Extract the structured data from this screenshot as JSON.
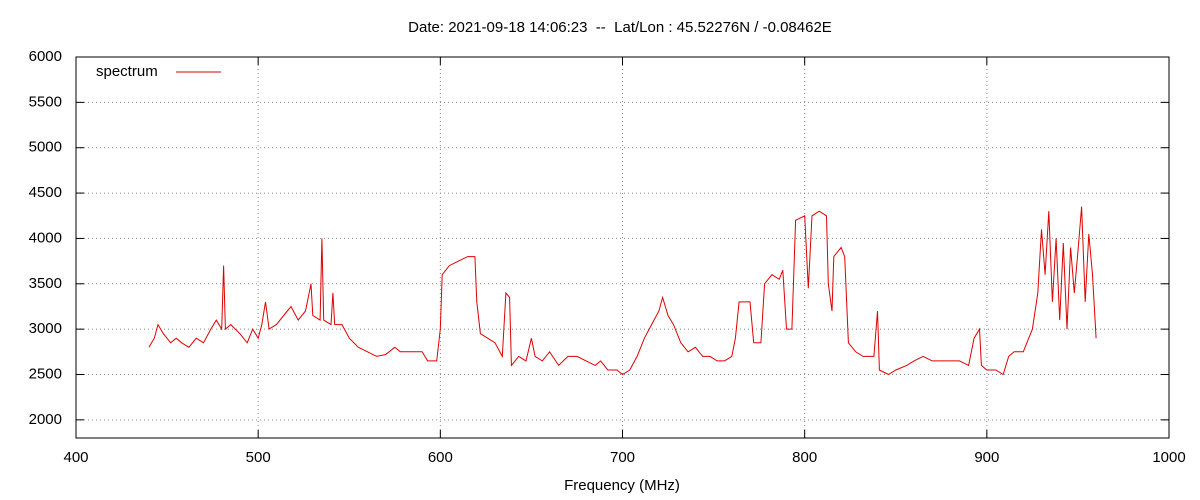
{
  "chart_data": {
    "type": "line",
    "title": "Date: 2021-09-18 14:06:23  --  Lat/Lon : 45.52276N / -0.08462E",
    "xlabel": "Frequency (MHz)",
    "xlim": [
      400,
      1000
    ],
    "xticks": [
      400,
      500,
      600,
      700,
      800,
      900,
      1000
    ],
    "ylim": [
      1800,
      6000
    ],
    "yticks": [
      2000,
      2500,
      3000,
      3500,
      4000,
      4500,
      5000,
      5500,
      6000
    ],
    "grid": true,
    "legend": "top-left",
    "x": [
      440,
      443,
      445,
      448,
      452,
      455,
      458,
      462,
      466,
      470,
      474,
      477,
      480,
      481,
      482,
      485,
      490,
      494,
      497,
      500,
      502,
      504,
      506,
      510,
      514,
      518,
      522,
      526,
      529,
      530,
      534,
      535,
      536,
      540,
      541,
      542,
      546,
      550,
      555,
      560,
      565,
      570,
      575,
      578,
      585,
      590,
      593,
      598,
      600,
      601,
      605,
      610,
      615,
      619,
      620,
      622,
      626,
      630,
      634,
      636,
      638,
      639,
      643,
      647,
      650,
      652,
      656,
      660,
      665,
      670,
      675,
      680,
      685,
      688,
      692,
      697,
      700,
      704,
      708,
      712,
      716,
      720,
      722,
      725,
      728,
      732,
      736,
      740,
      744,
      748,
      752,
      756,
      760,
      762,
      764,
      770,
      772,
      776,
      778,
      782,
      786,
      788,
      790,
      793,
      795,
      800,
      802,
      804,
      808,
      812,
      813,
      815,
      816,
      820,
      822,
      824,
      828,
      832,
      838,
      840,
      841,
      846,
      850,
      856,
      860,
      865,
      870,
      875,
      880,
      885,
      890,
      893,
      896,
      897,
      900,
      905,
      909,
      912,
      915,
      920,
      925,
      928,
      930,
      932,
      934,
      936,
      938,
      940,
      942,
      944,
      946,
      948,
      950,
      952,
      954,
      956,
      958,
      960
    ],
    "series": [
      {
        "name": "spectrum",
        "color": "#e00000",
        "values": [
          2800,
          2900,
          3050,
          2950,
          2850,
          2900,
          2850,
          2800,
          2900,
          2850,
          3000,
          3100,
          3000,
          3700,
          3000,
          3050,
          2950,
          2850,
          3000,
          2900,
          3050,
          3300,
          3000,
          3050,
          3150,
          3250,
          3100,
          3200,
          3500,
          3150,
          3100,
          4000,
          3100,
          3050,
          3400,
          3050,
          3050,
          2900,
          2800,
          2750,
          2700,
          2720,
          2800,
          2750,
          2750,
          2750,
          2650,
          2650,
          3000,
          3600,
          3700,
          3750,
          3800,
          3800,
          3300,
          2950,
          2900,
          2850,
          2700,
          3400,
          3350,
          2600,
          2700,
          2650,
          2900,
          2700,
          2650,
          2750,
          2600,
          2700,
          2700,
          2650,
          2600,
          2650,
          2550,
          2550,
          2500,
          2550,
          2700,
          2900,
          3050,
          3200,
          3350,
          3150,
          3050,
          2850,
          2750,
          2800,
          2700,
          2700,
          2650,
          2650,
          2700,
          2900,
          3300,
          3300,
          2850,
          2850,
          3500,
          3600,
          3550,
          3650,
          3000,
          3000,
          4200,
          4250,
          3450,
          4250,
          4300,
          4250,
          3500,
          3200,
          3800,
          3900,
          3800,
          2850,
          2750,
          2700,
          2700,
          3200,
          2550,
          2500,
          2550,
          2600,
          2650,
          2700,
          2650,
          2650,
          2650,
          2650,
          2600,
          2900,
          3000,
          2600,
          2550,
          2550,
          2500,
          2700,
          2750,
          2750,
          3000,
          3400,
          4100,
          3600,
          4300,
          3300,
          4000,
          3100,
          3950,
          3000,
          3900,
          3400,
          3850,
          4350,
          3300,
          4050,
          3600,
          2900
        ]
      }
    ]
  }
}
